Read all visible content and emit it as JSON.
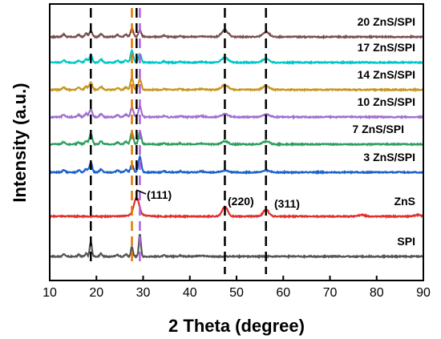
{
  "chart_data": {
    "type": "line",
    "xlabel": "2 Theta (degree)",
    "ylabel": "Intensity (a.u.)",
    "xlim": [
      10,
      90
    ],
    "xticks": [
      10,
      20,
      30,
      40,
      50,
      60,
      70,
      80,
      90
    ],
    "y_ticks_shown": false,
    "grid": false,
    "legend": "inline labels at right end of each trace",
    "series": [
      {
        "name": "20 ZnS/SPI",
        "color": "#7a4f4f",
        "type": "composite",
        "peaks": [
          [
            18.8,
            0.6
          ],
          [
            27.6,
            0.9
          ],
          [
            29.3,
            0.7
          ],
          [
            47.5,
            0.7
          ],
          [
            56.3,
            0.5
          ]
        ]
      },
      {
        "name": "17 ZnS/SPI",
        "color": "#00c8c8",
        "type": "composite",
        "peaks": [
          [
            18.8,
            0.8
          ],
          [
            27.6,
            1.2
          ],
          [
            29.3,
            0.9
          ],
          [
            47.5,
            0.5
          ],
          [
            56.3,
            0.4
          ]
        ]
      },
      {
        "name": "14 ZnS/SPI",
        "color": "#c8961e",
        "type": "composite",
        "peaks": [
          [
            18.8,
            0.8
          ],
          [
            27.6,
            1.2
          ],
          [
            29.3,
            1.1
          ],
          [
            47.5,
            0.5
          ],
          [
            56.3,
            0.4
          ]
        ]
      },
      {
        "name": "10 ZnS/SPI",
        "color": "#a070d0",
        "type": "composite",
        "peaks": [
          [
            18.8,
            0.8
          ],
          [
            27.6,
            1.0
          ],
          [
            29.3,
            1.1
          ],
          [
            47.5,
            0.3
          ],
          [
            56.3,
            0.3
          ]
        ]
      },
      {
        "name": "7 ZnS/SPI",
        "color": "#2e9e5e",
        "type": "composite",
        "peaks": [
          [
            18.8,
            1.1
          ],
          [
            27.6,
            1.2
          ],
          [
            29.3,
            1.3
          ],
          [
            47.5,
            0.3
          ],
          [
            56.3,
            0.3
          ]
        ]
      },
      {
        "name": "3 ZnS/SPI",
        "color": "#1e64c8",
        "type": "composite",
        "peaks": [
          [
            18.8,
            1.0
          ],
          [
            27.6,
            0.8
          ],
          [
            29.3,
            1.6
          ],
          [
            47.5,
            0.2
          ],
          [
            56.3,
            0.2
          ]
        ]
      },
      {
        "name": "ZnS",
        "color": "#e03030",
        "type": "zns",
        "peaks": [
          [
            28.6,
            1.8
          ],
          [
            47.5,
            1.0
          ],
          [
            56.3,
            0.7
          ],
          [
            76.8,
            0.15
          ],
          [
            88.8,
            0.15
          ]
        ]
      },
      {
        "name": "SPI",
        "color": "#555555",
        "type": "spi",
        "peaks": [
          [
            18.8,
            1.5
          ],
          [
            27.6,
            1.0
          ],
          [
            29.3,
            2.3
          ]
        ]
      }
    ],
    "reference_lines": [
      {
        "x": 18.8,
        "color": "#000000"
      },
      {
        "x": 27.6,
        "color": "#e07800"
      },
      {
        "x": 28.6,
        "color": "#000000"
      },
      {
        "x": 29.3,
        "color": "#b060e0"
      },
      {
        "x": 47.5,
        "color": "#000000"
      },
      {
        "x": 56.3,
        "color": "#000000"
      }
    ],
    "annotations": [
      {
        "text": "(111)",
        "x": 28.6
      },
      {
        "text": "(220)",
        "x": 47.5
      },
      {
        "text": "(311)",
        "x": 56.3
      }
    ]
  }
}
